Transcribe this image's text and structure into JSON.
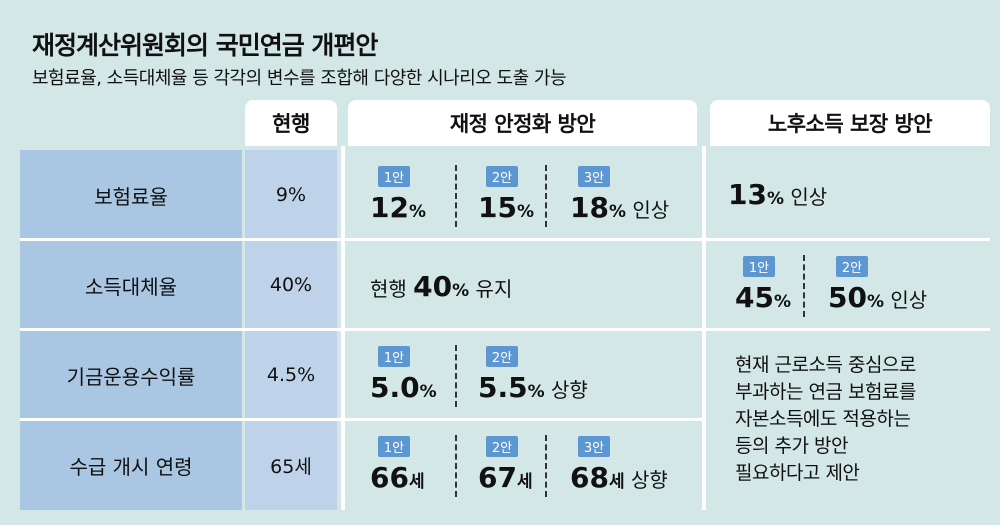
{
  "title": "재정계산위원회의 국민연금 개편안",
  "subtitle": "보험료율, 소득대체율 등 각각의 변수를 조합해 다양한 시나리오 도출 가능",
  "headers": [
    "현행",
    "재정 안정화 방안",
    "노후소득 보장 방안"
  ],
  "rows": [
    {
      "label": "보험료율",
      "current": "9%",
      "fiscal": [
        {
          "badge": "1안",
          "num": "12",
          "unit": "%"
        },
        {
          "badge": "2안",
          "num": "15",
          "unit": "%"
        },
        {
          "badge": "3안",
          "num": "18",
          "unit": "%",
          "suffix": "인상"
        }
      ],
      "pension": [
        {
          "num": "13",
          "unit": "%",
          "suffix": "인상"
        }
      ]
    },
    {
      "label": "소득대체율",
      "current": "40%",
      "fiscal": [
        {
          "prefix": "현행",
          "num": "40",
          "unit": "%",
          "suffix": "유지"
        }
      ],
      "pension": [
        {
          "badge": "1안",
          "num": "45",
          "unit": "%"
        },
        {
          "badge": "2안",
          "num": "50",
          "unit": "%",
          "suffix": "인상"
        }
      ]
    },
    {
      "label": "기금운용수익률",
      "current": "4.5%",
      "fiscal": [
        {
          "badge": "1안",
          "num": "5.0",
          "unit": "%"
        },
        {
          "badge": "2안",
          "num": "5.5",
          "unit": "%",
          "suffix": "상향"
        }
      ]
    },
    {
      "label": "수급 개시 연령",
      "current": "65세",
      "fiscal": [
        {
          "badge": "1안",
          "num": "66",
          "unit": "세"
        },
        {
          "badge": "2안",
          "num": "67",
          "unit": "세"
        },
        {
          "badge": "3안",
          "num": "68",
          "unit": "세",
          "suffix": "상향"
        }
      ]
    }
  ],
  "note": [
    "현재 근로소득 중심으로",
    "부과하는 연금 보험료를",
    "자본소득에도 적용하는",
    "등의 추가 방안",
    "필요하다고 제안"
  ]
}
